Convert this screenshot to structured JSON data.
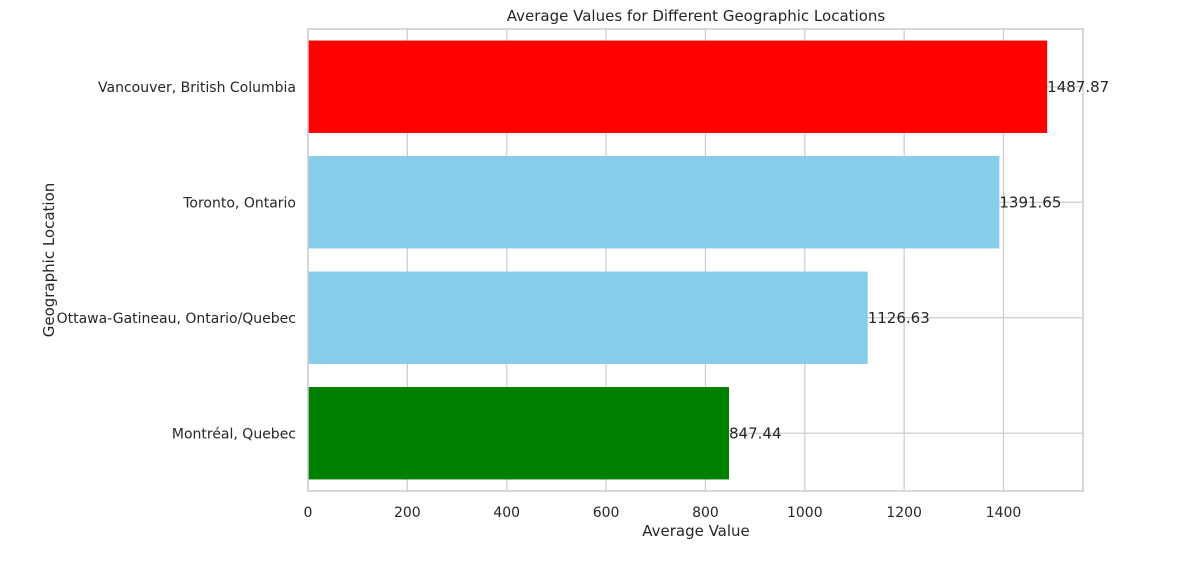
{
  "chart_data": {
    "type": "bar",
    "orientation": "horizontal",
    "title": "Average Values for Different Geographic Locations",
    "xlabel": "Average Value",
    "ylabel": "Geographic Location",
    "xlim": [
      0,
      1560
    ],
    "xticks": [
      0,
      200,
      400,
      600,
      800,
      1000,
      1200,
      1400
    ],
    "grid": true,
    "categories": [
      "Montréal, Quebec",
      "Ottawa-Gatineau, Ontario/Quebec",
      "Toronto, Ontario",
      "Vancouver, British Columbia"
    ],
    "values": [
      847.44,
      1126.63,
      1391.65,
      1487.87
    ],
    "value_labels": [
      "847.44",
      "1126.63",
      "1391.65",
      "1487.87"
    ],
    "colors": [
      "#008000",
      "#87CEEB",
      "#87CEEB",
      "#FF0000"
    ]
  }
}
